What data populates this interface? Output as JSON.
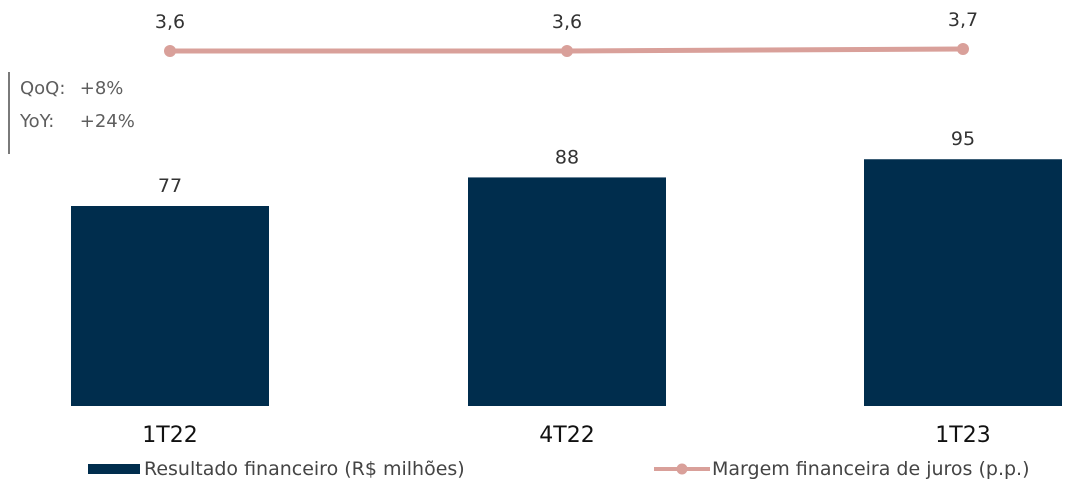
{
  "chart_data": {
    "type": "bar",
    "categories": [
      "1T22",
      "4T22",
      "1T23"
    ],
    "series": [
      {
        "name": "Resultado financeiro (R$ milhões)",
        "type": "bar",
        "values": [
          77,
          88,
          95
        ],
        "labels": [
          "77",
          "88",
          "95"
        ]
      },
      {
        "name": "Margem financeira de juros (p.p.)",
        "type": "line",
        "values": [
          3.6,
          3.6,
          3.7
        ],
        "labels": [
          "3,6",
          "3,6",
          "3,7"
        ]
      }
    ],
    "ylim_bar": [
      0,
      130
    ],
    "annotations": [
      {
        "label": "QoQ:",
        "value": "+8%"
      },
      {
        "label": "YoY:",
        "value": "+24%"
      }
    ],
    "grid": false,
    "legend_position": "bottom"
  },
  "colors": {
    "bar": "#002d4d",
    "line": "#d9a09a",
    "text": "#333333"
  }
}
